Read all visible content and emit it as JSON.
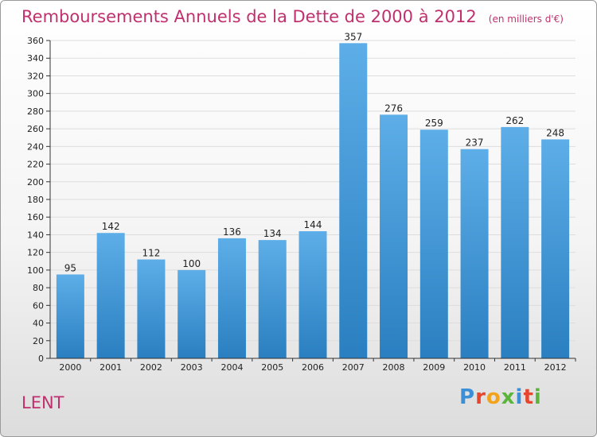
{
  "title": "Remboursements Annuels de la Dette de 2000 à 2012",
  "subtitle": "(en milliers d'€)",
  "commune": "LENT",
  "logo": "Proxiti",
  "colors": {
    "title": "#c0306e",
    "bar_top": "#5daee8",
    "bar_bottom": "#2a7fc0",
    "grid": "#dddddd",
    "axis": "#333333"
  },
  "chart_data": {
    "type": "bar",
    "title": "Remboursements Annuels de la Dette de 2000 à 2012",
    "subtitle": "(en milliers d'€)",
    "categories": [
      "2000",
      "2001",
      "2002",
      "2003",
      "2004",
      "2005",
      "2006",
      "2007",
      "2008",
      "2009",
      "2010",
      "2011",
      "2012"
    ],
    "values": [
      95,
      142,
      112,
      100,
      136,
      134,
      144,
      357,
      276,
      259,
      237,
      262,
      248
    ],
    "ylim": [
      0,
      360
    ],
    "yticks": [
      0,
      20,
      40,
      60,
      80,
      100,
      120,
      140,
      160,
      180,
      200,
      220,
      240,
      260,
      280,
      300,
      320,
      340,
      360
    ],
    "grid": true,
    "legend": "none"
  }
}
